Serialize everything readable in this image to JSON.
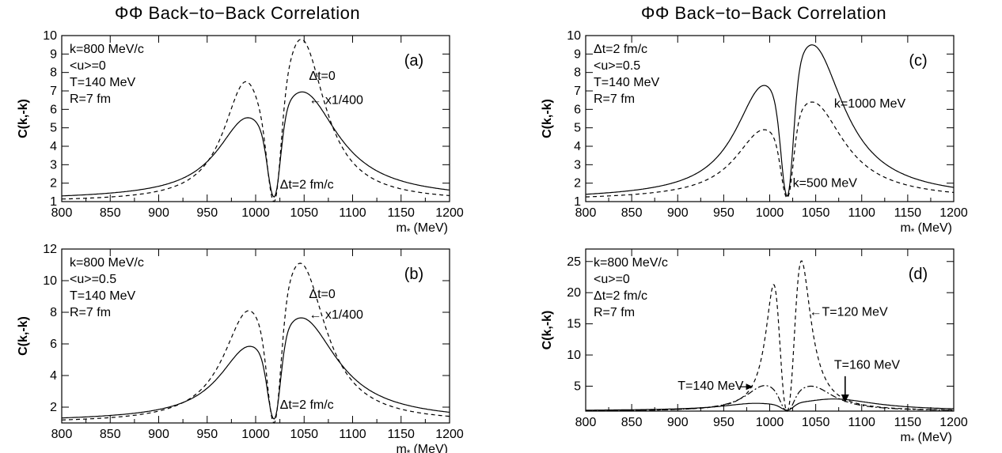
{
  "page_titles": [
    "ΦΦ Back−to−Back Correlation",
    "ΦΦ Back−to−Back Correlation"
  ],
  "chart_data": [
    {
      "id": "a",
      "type": "line",
      "panel_tag": "(a)",
      "xlabel": "m",
      "xlabel_sub": "*",
      "xlabel_unit": "(MeV)",
      "ylabel": "C(k,-k)",
      "xlim": [
        800,
        1200
      ],
      "ylim": [
        1,
        10
      ],
      "xticks": [
        800,
        850,
        900,
        950,
        1000,
        1050,
        1100,
        1150,
        1200
      ],
      "yticks": [
        1,
        2,
        3,
        4,
        5,
        6,
        7,
        8,
        9,
        10
      ],
      "info_lines": [
        "k=800 MeV/c",
        "<u>=0",
        "T=140 MeV",
        "R=7 fm"
      ],
      "series": [
        {
          "style": "solid",
          "peaks": {
            "x0": 1019,
            "x1": 992,
            "h1": 4.3,
            "w1": 38,
            "x2": 1048,
            "h2": 5.7,
            "w2": 45,
            "base": 1.0,
            "tail": 0.25
          }
        },
        {
          "style": "dashed",
          "peaks": {
            "x0": 1019,
            "x1": 990,
            "h1": 6.5,
            "w1": 28,
            "x2": 1047,
            "h2": 8.8,
            "w2": 30,
            "base": 1.0,
            "tail": 0.0
          }
        }
      ],
      "annotations": [
        {
          "text": "Δt=0",
          "x": 1055,
          "y": 7.6
        },
        {
          "text": "←  x1/400",
          "x": 1055,
          "y": 6.3
        },
        {
          "text": "Δt=2 fm/c",
          "x": 1025,
          "y": 1.7
        }
      ]
    },
    {
      "id": "c",
      "type": "line",
      "panel_tag": "(c)",
      "xlabel": "m",
      "xlabel_sub": "*",
      "xlabel_unit": "(MeV)",
      "ylabel": "C(k,-k)",
      "xlim": [
        800,
        1200
      ],
      "ylim": [
        1,
        10
      ],
      "xticks": [
        800,
        850,
        900,
        950,
        1000,
        1050,
        1100,
        1150,
        1200
      ],
      "yticks": [
        1,
        2,
        3,
        4,
        5,
        6,
        7,
        8,
        9,
        10
      ],
      "info_lines": [
        "Δt=2 fm/c",
        "<u>=0.5",
        "T=140 MeV",
        "R=7 fm"
      ],
      "series": [
        {
          "style": "solid",
          "peaks": {
            "x0": 1019,
            "x1": 994,
            "h1": 6.0,
            "w1": 38,
            "x2": 1046,
            "h2": 8.2,
            "w2": 42,
            "base": 1.0,
            "tail": 0.3
          }
        },
        {
          "style": "dashed",
          "peaks": {
            "x0": 1019,
            "x1": 994,
            "h1": 3.7,
            "w1": 38,
            "x2": 1046,
            "h2": 5.2,
            "w2": 42,
            "base": 1.0,
            "tail": 0.2
          }
        }
      ],
      "annotations": [
        {
          "text": "k=1000 MeV",
          "x": 1070,
          "y": 6.1
        },
        {
          "text": "k=500 MeV",
          "x": 1025,
          "y": 1.8
        }
      ]
    },
    {
      "id": "b",
      "type": "line",
      "panel_tag": "(b)",
      "xlabel": "m",
      "xlabel_sub": "*",
      "xlabel_unit": "(MeV)",
      "ylabel": "C(k,-k)",
      "xlim": [
        800,
        1200
      ],
      "ylim": [
        1,
        12
      ],
      "xticks": [
        800,
        850,
        900,
        950,
        1000,
        1050,
        1100,
        1150,
        1200
      ],
      "yticks": [
        2,
        4,
        6,
        8,
        10,
        12
      ],
      "info_lines": [
        "k=800 MeV/c",
        "<u>=0.5",
        "T=140 MeV",
        "R=7 fm"
      ],
      "series": [
        {
          "style": "solid",
          "peaks": {
            "x0": 1019,
            "x1": 994,
            "h1": 4.6,
            "w1": 38,
            "x2": 1047,
            "h2": 6.4,
            "w2": 45,
            "base": 1.0,
            "tail": 0.25
          }
        },
        {
          "style": "dashed",
          "peaks": {
            "x0": 1019,
            "x1": 993,
            "h1": 7.1,
            "w1": 32,
            "x2": 1046,
            "h2": 10.1,
            "w2": 32,
            "base": 1.0,
            "tail": 0.0
          }
        }
      ],
      "annotations": [
        {
          "text": "Δt=0",
          "x": 1055,
          "y": 8.9
        },
        {
          "text": "←  x1/400",
          "x": 1055,
          "y": 7.6
        },
        {
          "text": "Δt=2 fm/c",
          "x": 1025,
          "y": 1.9
        }
      ]
    },
    {
      "id": "d",
      "type": "line",
      "panel_tag": "(d)",
      "xlabel": "m",
      "xlabel_sub": "*",
      "xlabel_unit": "(MeV)",
      "ylabel": "C(k,-k)",
      "xlim": [
        800,
        1200
      ],
      "ylim": [
        1,
        27
      ],
      "xticks": [
        800,
        850,
        900,
        950,
        1000,
        1050,
        1100,
        1150,
        1200
      ],
      "yticks": [
        5,
        10,
        15,
        20,
        25
      ],
      "info_lines": [
        "k=800 MeV/c",
        "<u>=0",
        "Δt=2 fm/c",
        "R=7 fm"
      ],
      "series": [
        {
          "style": "dashed",
          "peaks": {
            "x0": 1019,
            "x1": 1006,
            "h1": 21.8,
            "w1": 12,
            "x2": 1033,
            "h2": 25.3,
            "w2": 14,
            "base": 1.0,
            "tail": 0.0
          }
        },
        {
          "style": "dashdot",
          "peaks": {
            "x0": 1019,
            "x1": 995,
            "h1": 4.1,
            "w1": 26,
            "x2": 1045,
            "h2": 4.0,
            "w2": 30,
            "base": 1.0,
            "tail": 0.0
          }
        },
        {
          "style": "solid",
          "peaks": {
            "x0": 1019,
            "x1": 985,
            "h1": 1.1,
            "w1": 45,
            "x2": 1070,
            "h2": 1.8,
            "w2": 55,
            "base": 1.0,
            "tail": 0.15
          }
        }
      ],
      "annotations": [
        {
          "text": "←T=120 MeV",
          "x": 1043,
          "y": 16.3
        },
        {
          "text": "T=160 MeV",
          "x": 1070,
          "y": 7.8
        },
        {
          "text": "T=140 MeV",
          "x": 900,
          "y": 4.4
        }
      ],
      "arrows": [
        {
          "kind": "right",
          "x_from": 967,
          "x_to": 982,
          "y": 4.9
        },
        {
          "kind": "down",
          "x": 1082,
          "y_from": 6.6,
          "y_to": 2.4
        }
      ]
    }
  ]
}
